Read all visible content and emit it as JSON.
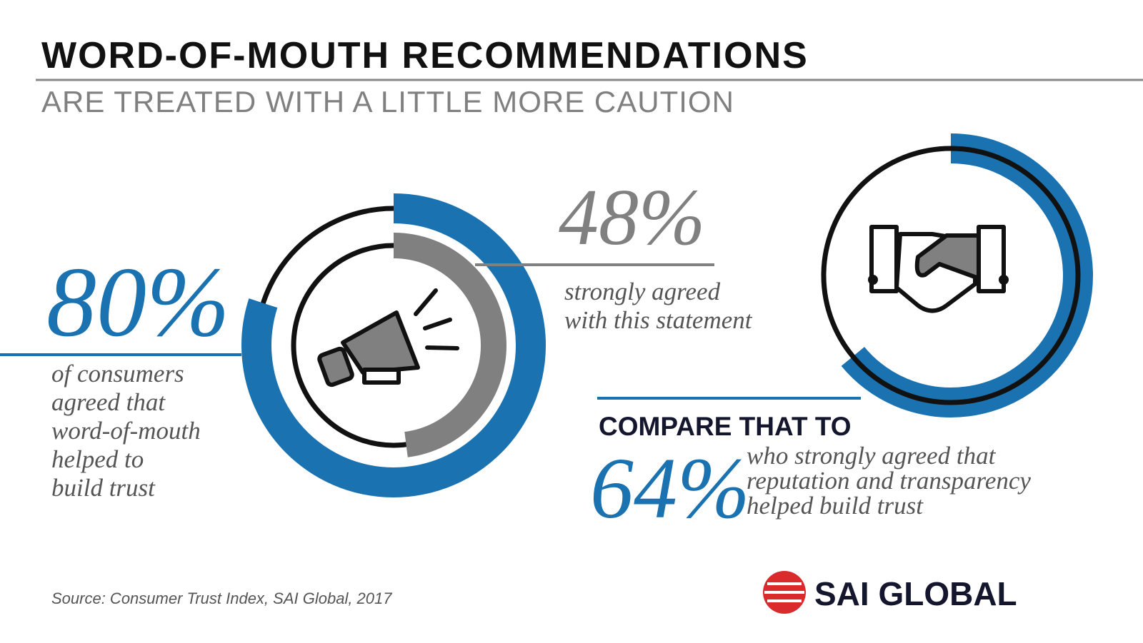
{
  "title": "WORD-OF-MOUTH RECOMMENDATIONS",
  "subtitle": "ARE TREATED WITH A LITTLE MORE CAUTION",
  "stats": [
    {
      "value": 80,
      "label": "80%",
      "text": [
        "of consumers",
        "agreed that",
        "word-of-mouth",
        "helped to",
        "build trust"
      ]
    },
    {
      "value": 48,
      "label": "48%",
      "text": [
        "strongly agreed",
        "with this statement"
      ]
    },
    {
      "value": 64,
      "label": "64%",
      "heading": "COMPARE THAT TO",
      "text": [
        "who strongly agreed that",
        "reputation and transparency",
        "helped build trust"
      ]
    }
  ],
  "source": "Source: Consumer Trust Index, SAI Global, 2017",
  "logo": "SAI GLOBAL"
}
